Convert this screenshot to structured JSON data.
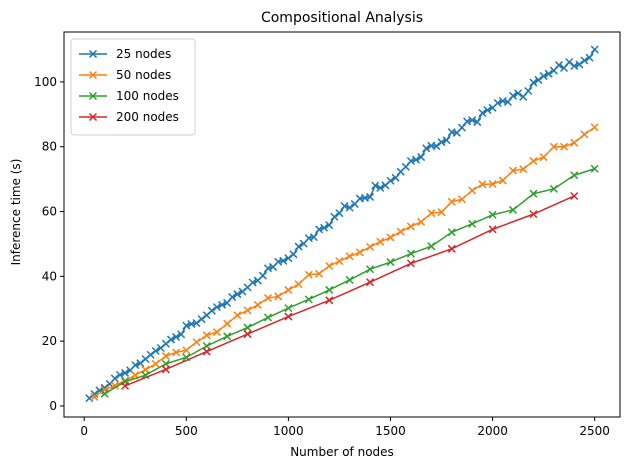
{
  "chart_data": {
    "type": "line",
    "title": "Compositional Analysis",
    "x_label": "Number of nodes",
    "y_label": "Inference time (s)",
    "xlim": [
      -99,
      2624
    ],
    "ylim": [
      -3.4,
      115.4
    ],
    "xticks": [
      0,
      500,
      1000,
      1500,
      2000,
      2500
    ],
    "yticks": [
      0,
      20,
      40,
      60,
      80,
      100
    ],
    "grid": false,
    "legend": "upper left",
    "marker": "x",
    "series": [
      {
        "name": "25 nodes",
        "color": "#1f77b4",
        "x": [
          25,
          50,
          75,
          100,
          125,
          150,
          175,
          200,
          225,
          250,
          275,
          300,
          325,
          350,
          375,
          400,
          425,
          450,
          475,
          500,
          525,
          550,
          575,
          600,
          625,
          650,
          675,
          700,
          725,
          750,
          775,
          800,
          825,
          850,
          875,
          900,
          925,
          950,
          975,
          1000,
          1025,
          1050,
          1075,
          1100,
          1125,
          1150,
          1175,
          1200,
          1225,
          1250,
          1275,
          1300,
          1325,
          1350,
          1375,
          1400,
          1425,
          1450,
          1475,
          1500,
          1525,
          1550,
          1575,
          1600,
          1625,
          1650,
          1675,
          1700,
          1725,
          1750,
          1775,
          1800,
          1825,
          1850,
          1875,
          1900,
          1925,
          1950,
          1975,
          2000,
          2025,
          2050,
          2075,
          2100,
          2125,
          2150,
          2175,
          2200,
          2225,
          2250,
          2275,
          2300,
          2325,
          2350,
          2375,
          2400,
          2425,
          2450,
          2475,
          2500
        ],
        "values": [
          2.4,
          3.7,
          4.8,
          5.6,
          6.8,
          8.5,
          9.6,
          10.2,
          11.0,
          12.6,
          13.2,
          14.5,
          15.8,
          17.0,
          17.9,
          19.2,
          20.5,
          21.3,
          22.1,
          24.8,
          25.3,
          25.6,
          26.8,
          28.0,
          29.4,
          30.5,
          31.2,
          31.8,
          33.6,
          34.5,
          35.3,
          36.6,
          38.1,
          38.7,
          40.2,
          42.5,
          42.9,
          44.5,
          44.8,
          45.6,
          46.8,
          49.2,
          50.1,
          51.8,
          52.1,
          54.5,
          55.0,
          55.8,
          58.4,
          59.5,
          61.7,
          61.2,
          62.3,
          64.0,
          64.2,
          64.5,
          68.0,
          67.3,
          68.1,
          69.5,
          70.4,
          72.3,
          73.8,
          75.6,
          76.0,
          76.8,
          79.5,
          80.3,
          80.2,
          81.4,
          82.0,
          84.5,
          84.3,
          85.9,
          87.8,
          88.2,
          87.6,
          90.4,
          91.3,
          92.0,
          93.5,
          94.1,
          93.8,
          95.7,
          96.5,
          95.4,
          97.2,
          99.8,
          100.6,
          101.8,
          102.5,
          103.5,
          105.2,
          104.3,
          106.1,
          104.9,
          105.4,
          106.6,
          107.5,
          110.0
        ]
      },
      {
        "name": "50 nodes",
        "color": "#ff7f0e",
        "x": [
          50,
          100,
          150,
          200,
          250,
          300,
          350,
          400,
          450,
          500,
          550,
          600,
          650,
          700,
          750,
          800,
          850,
          900,
          950,
          1000,
          1050,
          1100,
          1150,
          1200,
          1250,
          1300,
          1350,
          1400,
          1450,
          1500,
          1550,
          1600,
          1650,
          1700,
          1750,
          1800,
          1850,
          1900,
          1950,
          2000,
          2050,
          2100,
          2150,
          2200,
          2250,
          2300,
          2350,
          2400,
          2450,
          2500
        ],
        "values": [
          2.8,
          5.0,
          6.3,
          7.8,
          9.5,
          11.2,
          13.0,
          15.4,
          16.5,
          17.2,
          19.7,
          21.8,
          22.8,
          25.4,
          28.0,
          29.5,
          31.2,
          33.3,
          33.8,
          35.8,
          37.6,
          40.5,
          40.8,
          43.2,
          44.7,
          46.2,
          47.4,
          49.1,
          50.7,
          52.0,
          53.8,
          55.4,
          56.8,
          59.5,
          59.8,
          63.0,
          63.8,
          66.5,
          68.4,
          68.5,
          69.6,
          72.6,
          73.1,
          75.6,
          76.8,
          80.0,
          80.0,
          81.2,
          83.8,
          86.0
        ]
      },
      {
        "name": "100 nodes",
        "color": "#2ca02c",
        "x": [
          100,
          200,
          300,
          400,
          500,
          600,
          700,
          800,
          900,
          1000,
          1100,
          1200,
          1300,
          1400,
          1500,
          1600,
          1700,
          1800,
          1900,
          2000,
          2100,
          2200,
          2300,
          2400,
          2500
        ],
        "values": [
          3.8,
          7.5,
          9.5,
          13.0,
          15.0,
          18.5,
          21.5,
          24.2,
          27.3,
          30.2,
          32.9,
          35.8,
          38.9,
          42.2,
          44.4,
          47.0,
          49.3,
          53.6,
          56.2,
          59.0,
          60.5,
          65.5,
          67.0,
          71.2,
          73.2
        ]
      },
      {
        "name": "200 nodes",
        "color": "#d62728",
        "x": [
          200,
          400,
          600,
          800,
          1000,
          1200,
          1400,
          1600,
          1800,
          2000,
          2200,
          2400
        ],
        "values": [
          6.2,
          11.3,
          16.8,
          22.2,
          27.6,
          32.6,
          38.2,
          44.0,
          48.5,
          54.5,
          59.2,
          64.8
        ]
      }
    ]
  }
}
